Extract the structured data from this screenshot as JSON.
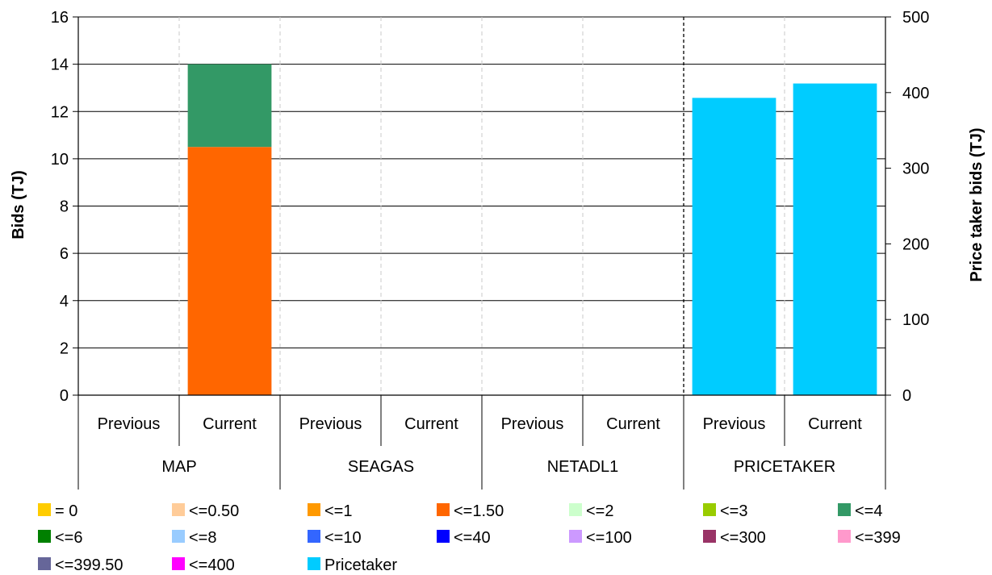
{
  "chart_data": {
    "type": "bar",
    "stacked": true,
    "title": "",
    "ylabel": "Bids (TJ)",
    "y2label": "Price taker bids (TJ)",
    "ylim": [
      0,
      16
    ],
    "y2lim": [
      0,
      500
    ],
    "yticks": [
      0,
      2,
      4,
      6,
      8,
      10,
      12,
      14,
      16
    ],
    "y2ticks": [
      0,
      100,
      200,
      300,
      400,
      500
    ],
    "grid": true,
    "legend_position": "bottom",
    "groups": [
      {
        "name": "MAP",
        "categories": [
          "Previous",
          "Current"
        ]
      },
      {
        "name": "SEAGAS",
        "categories": [
          "Previous",
          "Current"
        ]
      },
      {
        "name": "NETADL1",
        "categories": [
          "Previous",
          "Current"
        ]
      },
      {
        "name": "PRICETAKER",
        "categories": [
          "Previous",
          "Current"
        ]
      }
    ],
    "series": [
      {
        "name": "= 0",
        "color": "#FFCC00",
        "axis": "left",
        "values": [
          0,
          0,
          0,
          0,
          0,
          0,
          0,
          0
        ]
      },
      {
        "name": "<=0.50",
        "color": "#FFCC99",
        "axis": "left",
        "values": [
          0,
          0,
          0,
          0,
          0,
          0,
          0,
          0
        ]
      },
      {
        "name": "<=1",
        "color": "#FF9900",
        "axis": "left",
        "values": [
          0,
          0,
          0,
          0,
          0,
          0,
          0,
          0
        ]
      },
      {
        "name": "<=1.50",
        "color": "#FF6600",
        "axis": "left",
        "values": [
          0,
          10.5,
          0,
          0,
          0,
          0,
          0,
          0
        ]
      },
      {
        "name": "<=2",
        "color": "#CCFFCC",
        "axis": "left",
        "values": [
          0,
          0,
          0,
          0,
          0,
          0,
          0,
          0
        ]
      },
      {
        "name": "<=3",
        "color": "#99CC00",
        "axis": "left",
        "values": [
          0,
          0,
          0,
          0,
          0,
          0,
          0,
          0
        ]
      },
      {
        "name": "<=4",
        "color": "#339966",
        "axis": "left",
        "values": [
          0,
          3.5,
          0,
          0,
          0,
          0,
          0,
          0
        ]
      },
      {
        "name": "<=6",
        "color": "#008000",
        "axis": "left",
        "values": [
          0,
          0,
          0,
          0,
          0,
          0,
          0,
          0
        ]
      },
      {
        "name": "<=8",
        "color": "#99CCFF",
        "axis": "left",
        "values": [
          0,
          0,
          0,
          0,
          0,
          0,
          0,
          0
        ]
      },
      {
        "name": "<=10",
        "color": "#3366FF",
        "axis": "left",
        "values": [
          0,
          0,
          0,
          0,
          0,
          0,
          0,
          0
        ]
      },
      {
        "name": "<=40",
        "color": "#0000FF",
        "axis": "left",
        "values": [
          0,
          0,
          0,
          0,
          0,
          0,
          0,
          0
        ]
      },
      {
        "name": "<=100",
        "color": "#CC99FF",
        "axis": "left",
        "values": [
          0,
          0,
          0,
          0,
          0,
          0,
          0,
          0
        ]
      },
      {
        "name": "<=300",
        "color": "#993366",
        "axis": "left",
        "values": [
          0,
          0,
          0,
          0,
          0,
          0,
          0,
          0
        ]
      },
      {
        "name": "<=399",
        "color": "#FF99CC",
        "axis": "left",
        "values": [
          0,
          0,
          0,
          0,
          0,
          0,
          0,
          0
        ]
      },
      {
        "name": "<=399.50",
        "color": "#666699",
        "axis": "left",
        "values": [
          0,
          0,
          0,
          0,
          0,
          0,
          0,
          0
        ]
      },
      {
        "name": "<=400",
        "color": "#FF00FF",
        "axis": "left",
        "values": [
          0,
          0,
          0,
          0,
          0,
          0,
          0,
          0
        ]
      },
      {
        "name": "Pricetaker",
        "color": "#00CCFF",
        "axis": "right",
        "values": [
          0,
          0,
          0,
          0,
          0,
          0,
          393,
          412
        ]
      }
    ]
  }
}
